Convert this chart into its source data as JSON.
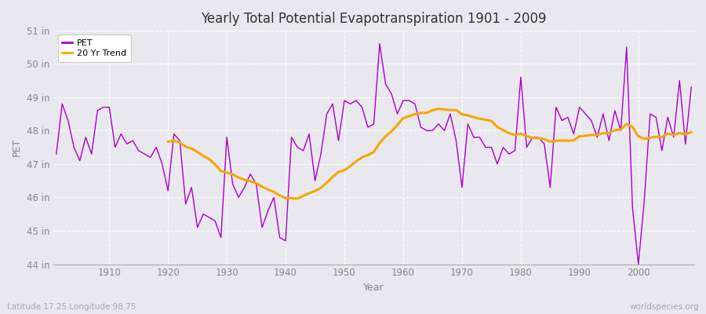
{
  "title": "Yearly Total Potential Evapotranspiration 1901 - 2009",
  "ylabel": "PET",
  "xlabel": "Year",
  "footnote_left": "Latitude 17.25 Longitude 98.75",
  "footnote_right": "worldspecies.org",
  "pet_color": "#aa00cc",
  "trend_color": "#f5a800",
  "bg_color": "#e8e8ee",
  "years": [
    1901,
    1902,
    1903,
    1904,
    1905,
    1906,
    1907,
    1908,
    1909,
    1910,
    1911,
    1912,
    1913,
    1914,
    1915,
    1916,
    1917,
    1918,
    1919,
    1920,
    1921,
    1922,
    1923,
    1924,
    1925,
    1926,
    1927,
    1928,
    1929,
    1930,
    1931,
    1932,
    1933,
    1934,
    1935,
    1936,
    1937,
    1938,
    1939,
    1940,
    1941,
    1942,
    1943,
    1944,
    1945,
    1946,
    1947,
    1948,
    1949,
    1950,
    1951,
    1952,
    1953,
    1954,
    1955,
    1956,
    1957,
    1958,
    1959,
    1960,
    1961,
    1962,
    1963,
    1964,
    1965,
    1966,
    1967,
    1968,
    1969,
    1970,
    1971,
    1972,
    1973,
    1974,
    1975,
    1976,
    1977,
    1978,
    1979,
    1980,
    1981,
    1982,
    1983,
    1984,
    1985,
    1986,
    1987,
    1988,
    1989,
    1990,
    1991,
    1992,
    1993,
    1994,
    1995,
    1996,
    1997,
    1998,
    1999,
    2000,
    2001,
    2002,
    2003,
    2004,
    2005,
    2006,
    2007,
    2008,
    2009
  ],
  "pet": [
    47.3,
    48.8,
    48.3,
    47.5,
    47.1,
    47.8,
    47.3,
    48.6,
    48.7,
    48.7,
    47.5,
    47.9,
    47.6,
    47.7,
    47.4,
    47.3,
    47.2,
    47.5,
    47.0,
    46.2,
    47.9,
    47.7,
    45.8,
    46.3,
    45.1,
    45.5,
    45.4,
    45.3,
    44.8,
    47.8,
    46.4,
    46.0,
    46.3,
    46.7,
    46.4,
    45.1,
    45.6,
    46.0,
    44.8,
    44.7,
    47.8,
    47.5,
    47.4,
    47.9,
    46.5,
    47.3,
    48.5,
    48.8,
    47.7,
    48.9,
    48.8,
    48.9,
    48.7,
    48.1,
    48.2,
    50.6,
    49.4,
    49.1,
    48.5,
    48.9,
    48.9,
    48.8,
    48.1,
    48.0,
    48.0,
    48.2,
    48.0,
    48.5,
    47.7,
    46.3,
    48.2,
    47.8,
    47.8,
    47.5,
    47.5,
    47.0,
    47.5,
    47.3,
    47.4,
    49.6,
    47.5,
    47.8,
    47.8,
    47.6,
    46.3,
    48.7,
    48.3,
    48.4,
    47.9,
    48.7,
    48.5,
    48.3,
    47.8,
    48.5,
    47.7,
    48.6,
    48.0,
    50.5,
    45.7,
    44.0,
    45.9,
    48.5,
    48.4,
    47.4,
    48.4,
    47.8,
    49.5,
    47.6,
    49.3
  ],
  "ylim": [
    44.0,
    51.0
  ],
  "yticks": [
    44,
    45,
    46,
    47,
    48,
    49,
    50,
    51
  ],
  "xticks": [
    1910,
    1920,
    1930,
    1940,
    1950,
    1960,
    1970,
    1980,
    1990,
    2000
  ],
  "trend_window": 20,
  "grid_color": "#ffffff",
  "tick_color": "#888888",
  "title_color": "#333333",
  "spine_color": "#aaaaaa"
}
